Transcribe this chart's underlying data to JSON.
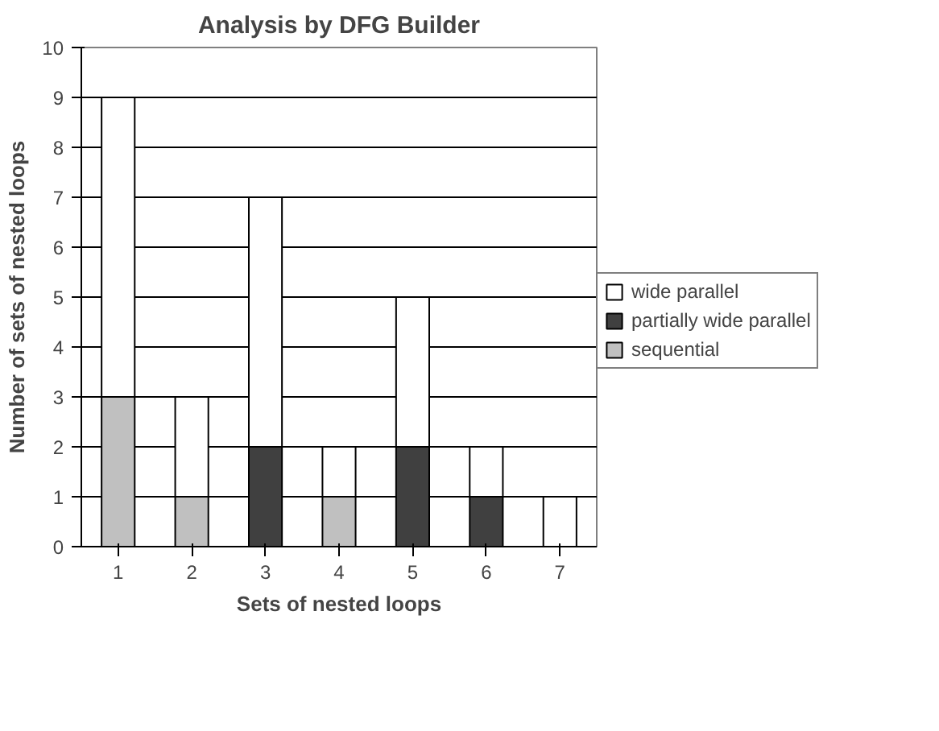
{
  "chart_data": {
    "type": "bar",
    "stacked": true,
    "title": "Analysis by DFG Builder",
    "xlabel": "Sets of nested loops",
    "ylabel": "Number of sets of nested loops",
    "categories": [
      "1",
      "2",
      "3",
      "4",
      "5",
      "6",
      "7"
    ],
    "series": [
      {
        "name": "sequential",
        "color": "#c0c0c0",
        "values": [
          3,
          1,
          0,
          1,
          0,
          0,
          0
        ]
      },
      {
        "name": "partially wide parallel",
        "color": "#404040",
        "values": [
          0,
          0,
          2,
          0,
          2,
          1,
          0
        ]
      },
      {
        "name": "wide parallel",
        "color": "#ffffff",
        "values": [
          6,
          2,
          5,
          1,
          3,
          1,
          1
        ]
      }
    ],
    "ylim": [
      0,
      10
    ],
    "yticks": [
      0,
      1,
      2,
      3,
      4,
      5,
      6,
      7,
      8,
      9,
      10
    ],
    "grid": "y",
    "legend": "right"
  }
}
